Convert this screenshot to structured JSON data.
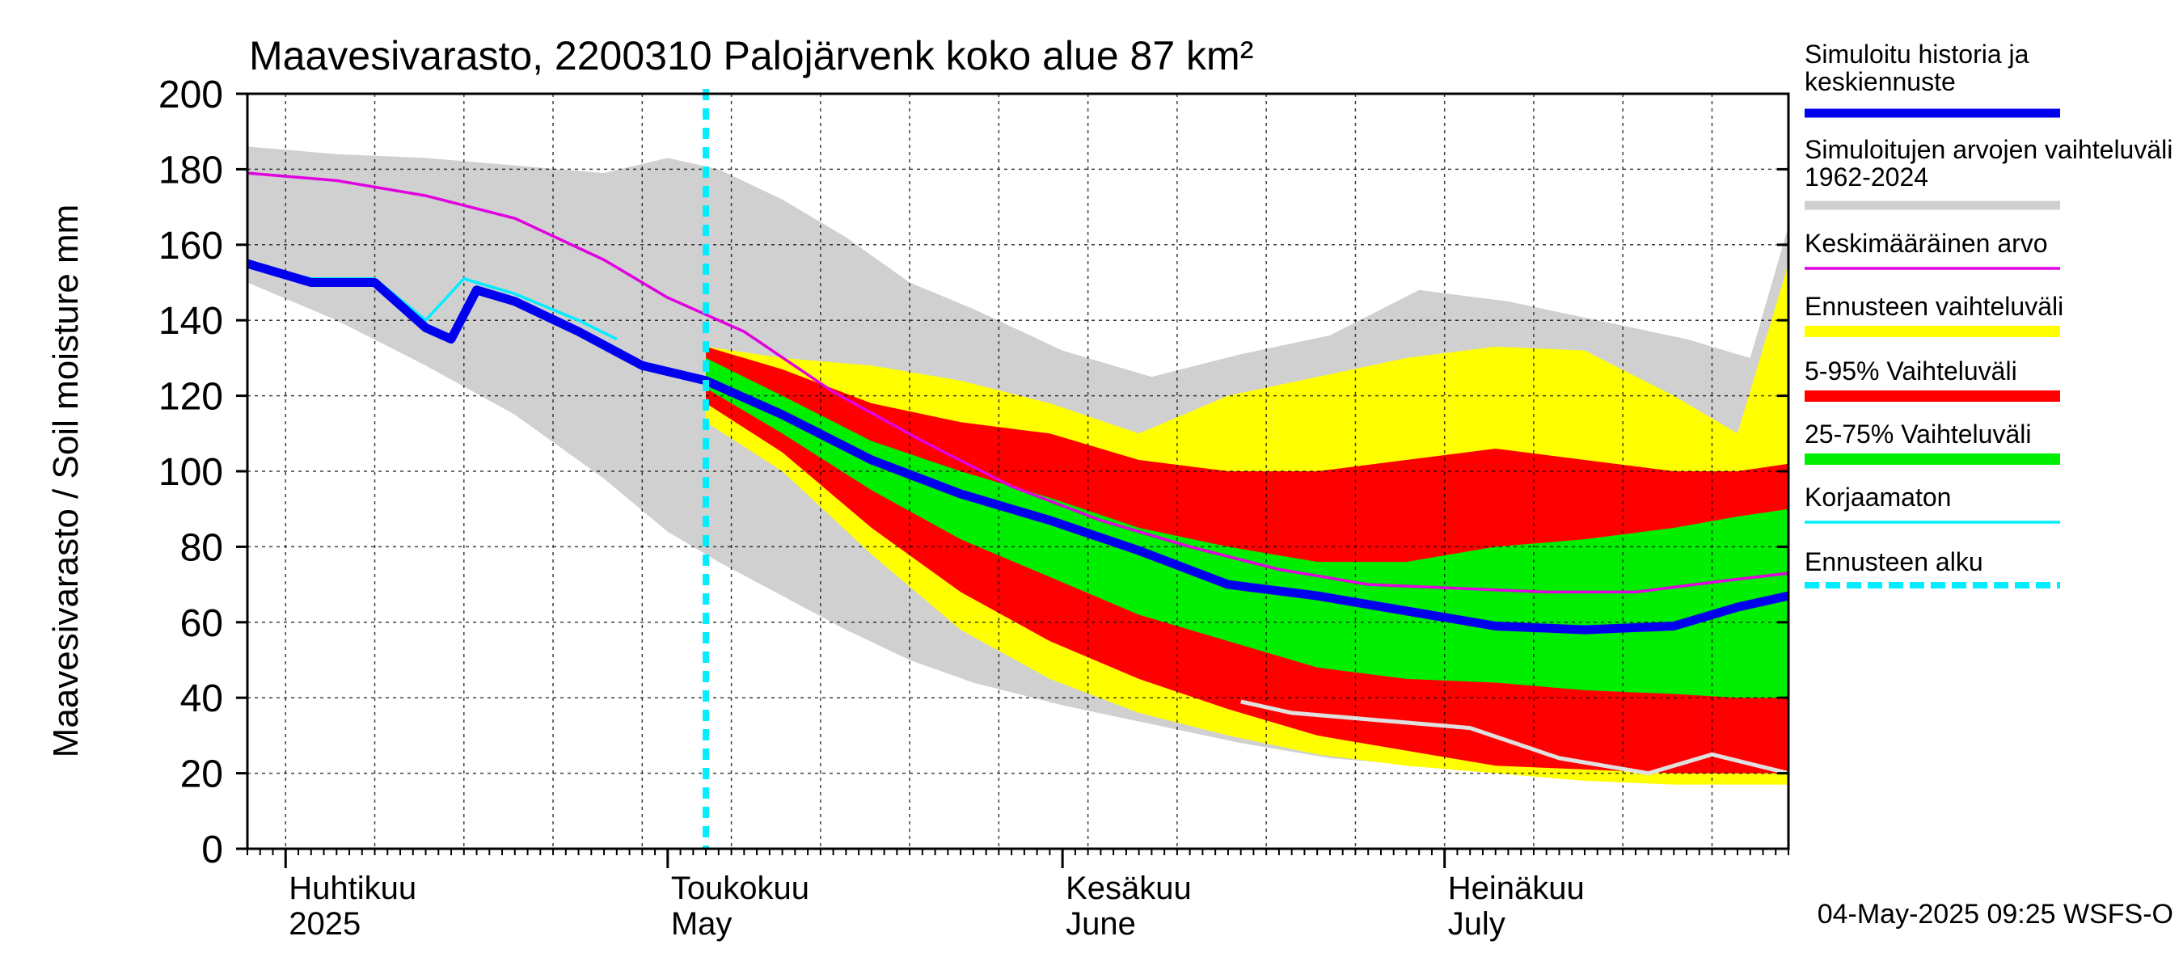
{
  "chart_data": {
    "type": "area",
    "title": "Maavesivarasto, 2200310 Palojärvenk koko alue 87 km²",
    "ylabel": "Maavesivarasto / Soil moisture   mm",
    "xlabel": "",
    "ylim": [
      0,
      200
    ],
    "yticks": [
      "0",
      "20",
      "40",
      "60",
      "80",
      "100",
      "120",
      "140",
      "160",
      "180",
      "200"
    ],
    "xlim": [
      "2025-03-29",
      "2025-07-28"
    ],
    "grid": true,
    "legend_position": "right",
    "month_labels": [
      {
        "fi": "Huhtikuu",
        "en": "2025",
        "date": "2025-04-01"
      },
      {
        "fi": "Toukokuu",
        "en": "May",
        "date": "2025-05-01"
      },
      {
        "fi": "Kesäkuu",
        "en": "June",
        "date": "2025-06-01"
      },
      {
        "fi": "Heinäkuu",
        "en": "July",
        "date": "2025-07-01"
      }
    ],
    "forecast_start": "2025-05-04",
    "timestamp": "04-May-2025 09:25 WSFS-O",
    "legend": [
      {
        "label": "Simuloitu historia ja keskiennuste",
        "color": "#0000ee"
      },
      {
        "label": "Simuloitujen arvojen vaihteluväli 1962-2024",
        "color": "#d0d0d0"
      },
      {
        "label": "Keskimääräinen arvo",
        "color": "#e000e0"
      },
      {
        "label": "Ennusteen vaihteluväli",
        "color": "#ffff00"
      },
      {
        "label": "5-95% Vaihteluväli",
        "color": "#ff0000"
      },
      {
        "label": "25-75% Vaihteluväli",
        "color": "#00ee00"
      },
      {
        "label": "Korjaamaton",
        "color": "#00eeff"
      },
      {
        "label": "Ennusteen alku",
        "color": "#00eeff"
      }
    ],
    "series": [
      {
        "name": "Simuloitujen arvojen vaihteluväli 1962-2024",
        "kind": "band",
        "color": "#d0d0d0",
        "x": [
          "2025-03-29",
          "2025-04-05",
          "2025-04-12",
          "2025-04-19",
          "2025-04-26",
          "2025-05-01",
          "2025-05-05",
          "2025-05-10",
          "2025-05-15",
          "2025-05-20",
          "2025-05-25",
          "2025-06-01",
          "2025-06-08",
          "2025-06-15",
          "2025-06-22",
          "2025-06-29",
          "2025-07-06",
          "2025-07-13",
          "2025-07-20",
          "2025-07-25",
          "2025-07-28"
        ],
        "low": [
          150,
          140,
          128,
          115,
          98,
          84,
          76,
          67,
          58,
          50,
          44,
          38,
          33,
          28,
          24,
          22,
          21,
          20,
          20,
          20,
          20
        ],
        "high": [
          186,
          184,
          183,
          181,
          179,
          183,
          180,
          172,
          162,
          150,
          143,
          132,
          125,
          131,
          136,
          148,
          145,
          140,
          135,
          130,
          165
        ]
      },
      {
        "name": "Ennusteen vaihteluväli",
        "kind": "band",
        "color": "#ffff00",
        "x": [
          "2025-05-04",
          "2025-05-10",
          "2025-05-17",
          "2025-05-24",
          "2025-05-31",
          "2025-06-07",
          "2025-06-14",
          "2025-06-21",
          "2025-06-28",
          "2025-07-05",
          "2025-07-12",
          "2025-07-19",
          "2025-07-24",
          "2025-07-28"
        ],
        "low": [
          113,
          100,
          78,
          58,
          45,
          36,
          30,
          25,
          22,
          20,
          18,
          17,
          17,
          17
        ],
        "high": [
          133,
          130,
          128,
          124,
          118,
          110,
          120,
          125,
          130,
          133,
          132,
          120,
          110,
          155
        ]
      },
      {
        "name": "5-95% Vaihteluväli",
        "kind": "band",
        "color": "#ff0000",
        "x": [
          "2025-05-04",
          "2025-05-10",
          "2025-05-17",
          "2025-05-24",
          "2025-05-31",
          "2025-06-07",
          "2025-06-14",
          "2025-06-21",
          "2025-06-28",
          "2025-07-05",
          "2025-07-12",
          "2025-07-19",
          "2025-07-24",
          "2025-07-28"
        ],
        "low": [
          118,
          105,
          85,
          68,
          55,
          45,
          37,
          30,
          26,
          22,
          21,
          20,
          20,
          20
        ],
        "high": [
          133,
          127,
          118,
          113,
          110,
          103,
          100,
          100,
          103,
          106,
          103,
          100,
          100,
          102
        ]
      },
      {
        "name": "25-75% Vaihteluväli",
        "kind": "band",
        "color": "#00ee00",
        "x": [
          "2025-05-04",
          "2025-05-10",
          "2025-05-17",
          "2025-05-24",
          "2025-05-31",
          "2025-06-07",
          "2025-06-14",
          "2025-06-21",
          "2025-06-28",
          "2025-07-05",
          "2025-07-12",
          "2025-07-19",
          "2025-07-24",
          "2025-07-28"
        ],
        "low": [
          122,
          110,
          95,
          82,
          72,
          62,
          55,
          48,
          45,
          44,
          42,
          41,
          40,
          40
        ],
        "high": [
          130,
          120,
          108,
          100,
          93,
          85,
          80,
          76,
          76,
          80,
          82,
          85,
          88,
          90
        ]
      },
      {
        "name": "Keskimääräinen arvo",
        "kind": "line",
        "color": "#e000e0",
        "x": [
          "2025-03-29",
          "2025-04-05",
          "2025-04-12",
          "2025-04-19",
          "2025-04-26",
          "2025-05-01",
          "2025-05-07",
          "2025-05-14",
          "2025-05-21",
          "2025-05-28",
          "2025-06-04",
          "2025-06-11",
          "2025-06-18",
          "2025-06-25",
          "2025-07-02",
          "2025-07-09",
          "2025-07-16",
          "2025-07-23",
          "2025-07-28"
        ],
        "y": [
          179,
          177,
          173,
          167,
          156,
          146,
          137,
          121,
          108,
          96,
          87,
          80,
          74,
          70,
          69,
          68,
          68,
          71,
          73
        ]
      },
      {
        "name": "Korjaamaton",
        "kind": "line",
        "color": "#00eeff",
        "x": [
          "2025-03-29",
          "2025-04-03",
          "2025-04-08",
          "2025-04-12",
          "2025-04-15",
          "2025-04-19",
          "2025-04-24",
          "2025-04-27"
        ],
        "y": [
          155,
          151,
          151,
          140,
          151,
          147,
          140,
          135
        ]
      },
      {
        "name": "Simuloitu historia ja keskiennuste",
        "kind": "line",
        "color": "#0000ee",
        "x": [
          "2025-03-29",
          "2025-04-03",
          "2025-04-08",
          "2025-04-12",
          "2025-04-14",
          "2025-04-16",
          "2025-04-19",
          "2025-04-24",
          "2025-04-29",
          "2025-05-04",
          "2025-05-10",
          "2025-05-17",
          "2025-05-24",
          "2025-05-31",
          "2025-06-07",
          "2025-06-14",
          "2025-06-21",
          "2025-06-28",
          "2025-07-05",
          "2025-07-12",
          "2025-07-19",
          "2025-07-24",
          "2025-07-28"
        ],
        "y": [
          155,
          150,
          150,
          138,
          135,
          148,
          145,
          137,
          128,
          124,
          115,
          103,
          94,
          87,
          79,
          70,
          67,
          63,
          59,
          58,
          59,
          64,
          67
        ]
      },
      {
        "name": "",
        "kind": "line",
        "color": "#e0e0e0",
        "x": [
          "2025-06-15",
          "2025-06-19",
          "2025-06-26",
          "2025-07-03",
          "2025-07-10",
          "2025-07-17",
          "2025-07-22",
          "2025-07-28"
        ],
        "y": [
          39,
          36,
          34,
          32,
          24,
          20,
          25,
          20
        ]
      }
    ]
  }
}
